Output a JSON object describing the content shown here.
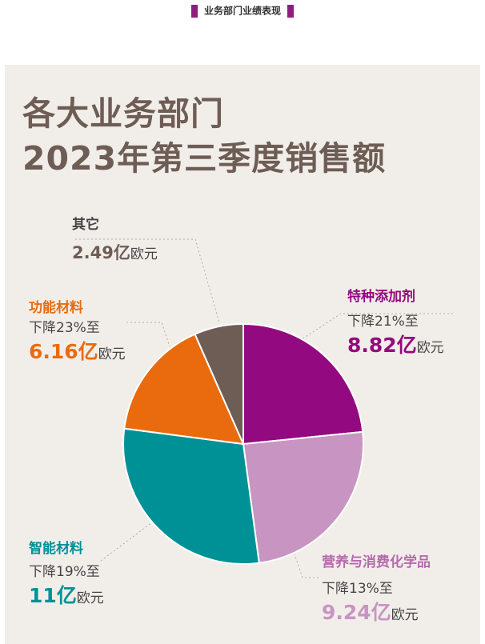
{
  "header": {
    "tag_text": "业务部门业绩表现"
  },
  "title": {
    "line1": "各大业务部门",
    "line2": "2023年第三季度销售额"
  },
  "colors": {
    "panel_bg": "#f1eeea",
    "title": "#6e5d55",
    "specialty_additives": "#93097f",
    "nutrition_care": "#c894c2",
    "smart_materials": "#009196",
    "performance_materials": "#ea6b0e",
    "other": "#6e5d55"
  },
  "labels": {
    "other": {
      "name": "其它",
      "value": "2.49亿",
      "unit": "欧元"
    },
    "performance_materials": {
      "name": "功能材料",
      "change": "下降23%至",
      "value": "6.16亿",
      "unit": "欧元"
    },
    "specialty_additives": {
      "name": "特种添加剂",
      "change": "下降21%至",
      "value": "8.82亿",
      "unit": "欧元"
    },
    "smart_materials": {
      "name": "智能材料",
      "change": "下降19%至",
      "value": "11亿",
      "unit": "欧元"
    },
    "nutrition_care": {
      "name": "营养与消费化学品",
      "change": "下降13%至",
      "value": "9.24亿",
      "unit": "欧元"
    }
  },
  "chart_data": {
    "type": "pie",
    "title": "各大业务部门 2023年第三季度销售额",
    "unit": "亿欧元",
    "start": "top, clockwise",
    "slices": [
      {
        "label": "特种添加剂",
        "value": 8.82,
        "color": "#93097f"
      },
      {
        "label": "营养与消费化学品",
        "value": 9.24,
        "color": "#c894c2"
      },
      {
        "label": "智能材料",
        "value": 11,
        "color": "#009196"
      },
      {
        "label": "功能材料",
        "value": 6.16,
        "color": "#ea6b0e"
      },
      {
        "label": "其它",
        "value": 2.49,
        "color": "#6e5d55"
      }
    ]
  }
}
